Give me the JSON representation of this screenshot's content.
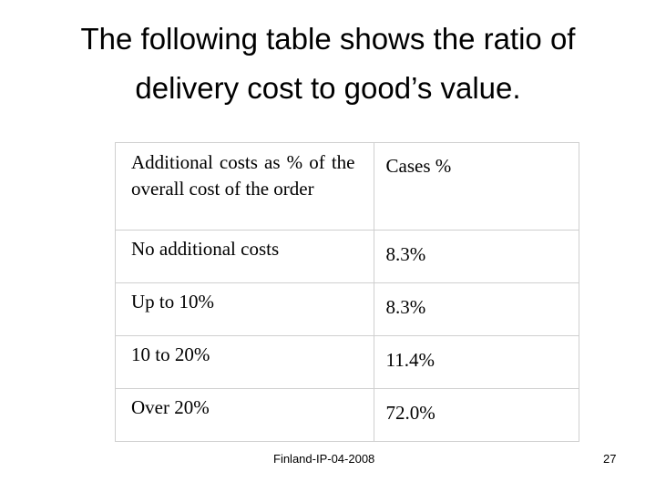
{
  "title": {
    "line1": "The following table shows the ratio of",
    "line2": "delivery cost to good’s value."
  },
  "table": {
    "headers": [
      "Additional costs as % of the overall cost of the order",
      "Cases %"
    ],
    "rows": [
      [
        "No additional costs",
        "8.3%"
      ],
      [
        "Up to 10%",
        "8.3%"
      ],
      [
        "10 to 20%",
        "11.4%"
      ],
      [
        "Over 20%",
        "72.0%"
      ]
    ]
  },
  "footer": {
    "code": "Finland-IP-04-2008",
    "page_number": "27"
  }
}
